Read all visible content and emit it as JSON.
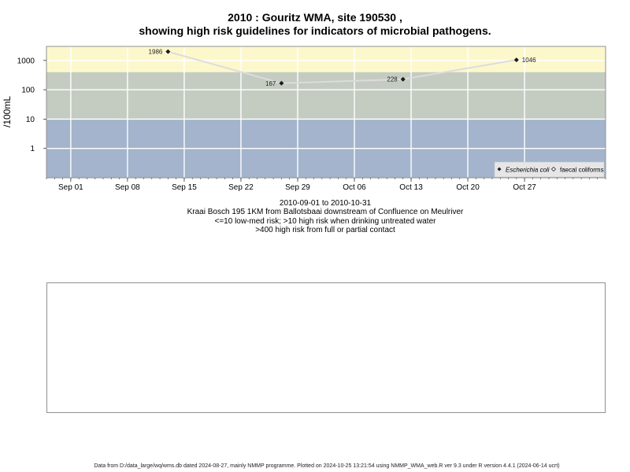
{
  "chart_data": {
    "type": "line",
    "title": "2010 : Gouritz WMA, site 190530 ,",
    "subtitle": "showing high risk guidelines for indicators of microbial pathogens.",
    "ylabel": "/100mL",
    "y_scale": "log",
    "ylim": [
      0.1,
      3000
    ],
    "xlim": [
      "2010-08-29",
      "2010-11-06"
    ],
    "y_ticks": [
      1,
      10,
      100,
      1000
    ],
    "y_tick_labels": [
      "1",
      "10",
      "100",
      "1000"
    ],
    "x_ticks": [
      "2010-09-01",
      "2010-09-08",
      "2010-09-15",
      "2010-09-22",
      "2010-09-29",
      "2010-10-06",
      "2010-10-13",
      "2010-10-20",
      "2010-10-27"
    ],
    "x_tick_labels": [
      "Sep 01",
      "Sep 08",
      "Sep 15",
      "Sep 22",
      "Sep 29",
      "Oct 06",
      "Oct 13",
      "Oct 20",
      "Oct 27"
    ],
    "grid": true,
    "risk_bands": [
      {
        "from": 0.1,
        "to": 10,
        "color": "#a3b4cc"
      },
      {
        "from": 10,
        "to": 400,
        "color": "#c4ccc2"
      },
      {
        "from": 400,
        "to": 3000,
        "color": "#fdf8cc"
      }
    ],
    "series": [
      {
        "name": "Escherichia coli",
        "marker": "diamond-filled",
        "line_color": "#dcdcdc",
        "points": [
          {
            "x": "2010-09-13",
            "y": 1986,
            "label": "1986"
          },
          {
            "x": "2010-09-27",
            "y": 167,
            "label": "167"
          },
          {
            "x": "2010-10-12",
            "y": 228,
            "label": "228"
          },
          {
            "x": "2010-10-26",
            "y": 1046,
            "label": "1046"
          }
        ]
      },
      {
        "name": "faecal coliforms",
        "marker": "diamond-open",
        "points": []
      }
    ],
    "legend": {
      "position": "bottom-right"
    },
    "period": "2010-09-01 to 2010-10-31",
    "site_description": "Kraai Bosch 195 1KM from Ballotsbaai downstream of Confluence on Meulriver",
    "guideline_1": "<=10 low-med risk; >10 high risk when drinking untreated water",
    "guideline_2": ">400 high risk from full or partial contact"
  },
  "footer": "Data from D:/data_large/wq/wms.db dated 2024-08-27, mainly NMMP programme. Plotted on 2024-10-25 13:21:54 using NMMP_WMA_web.R ver 9.3 under R version 4.4.1 (2024-06-14 ucrt)"
}
